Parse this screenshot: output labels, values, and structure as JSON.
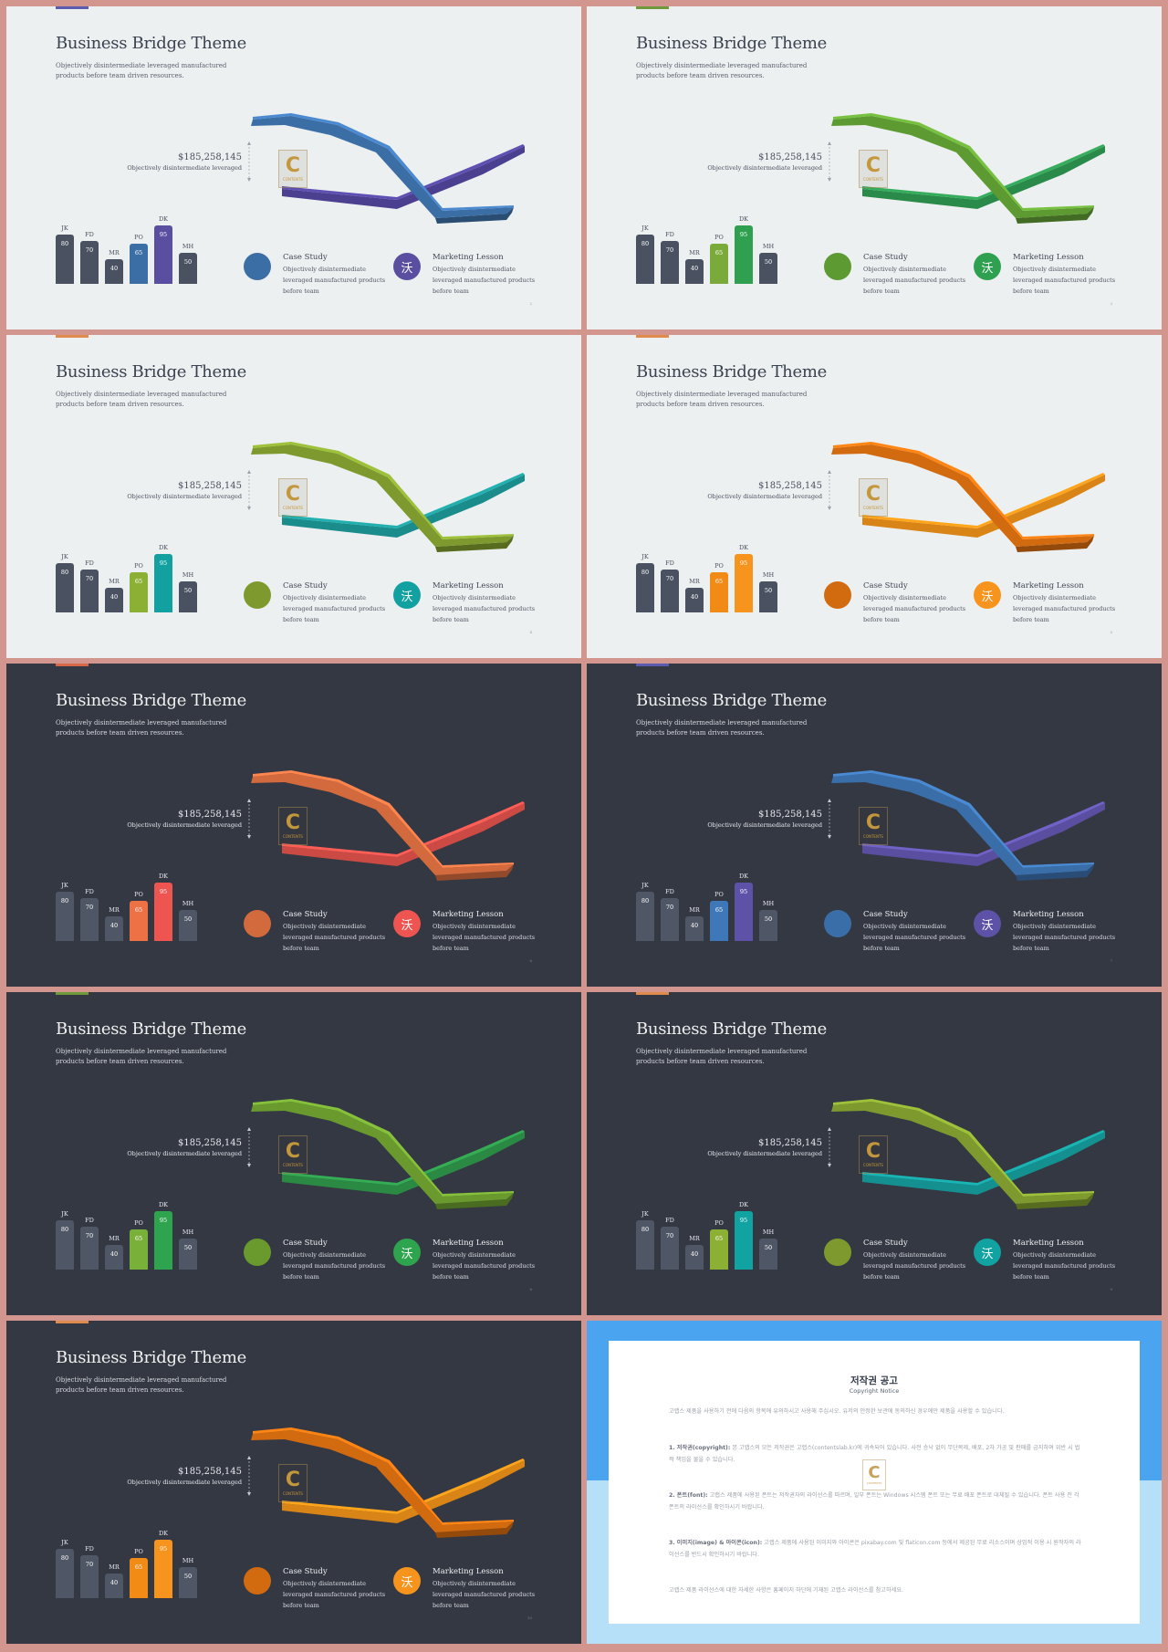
{
  "deck": {
    "common": {
      "title": "Business Bridge Theme",
      "subtitle": "Objectively disintermediate leveraged manufactured products before team driven resources.",
      "amount": "$185,258,145",
      "amount_desc": "Objectively disintermediate leveraged",
      "watermark_letter": "C",
      "watermark_text": "CONTENTS",
      "legend": [
        {
          "title": "Case Study",
          "desc": "Objectively disintermediate leveraged manufactured products before team",
          "icon": "circle"
        },
        {
          "title": "Marketing Lesson",
          "desc": "Objectively disintermediate leveraged manufactured products before team",
          "icon": "沃"
        }
      ],
      "bars": [
        {
          "label": "JK",
          "value": 80
        },
        {
          "label": "FD",
          "value": 70
        },
        {
          "label": "MR",
          "value": 40
        },
        {
          "label": "PO",
          "value": 65
        },
        {
          "label": "DK",
          "value": 95
        },
        {
          "label": "MH",
          "value": 50
        }
      ]
    },
    "slides": [
      {
        "theme": "light",
        "page": "2",
        "tab": "#5b5bb0",
        "c1": "#3c6ea6",
        "c2": "#4b3f8f",
        "bar_po": "#3c6ea6",
        "bar_dk": "#5a4ea0"
      },
      {
        "theme": "light",
        "page": "3",
        "tab": "#6e9a3c",
        "c1": "#5e9a32",
        "c2": "#2a8a4a",
        "bar_po": "#7aab3a",
        "bar_dk": "#2ea050"
      },
      {
        "theme": "light",
        "page": "4",
        "tab": "#e08a4c",
        "c1": "#7e9a2e",
        "c2": "#1a8c8c",
        "bar_po": "#8cb034",
        "bar_dk": "#13a0a0"
      },
      {
        "theme": "light",
        "page": "5",
        "tab": "#e08a4c",
        "c1": "#d26a10",
        "c2": "#d98416",
        "bar_po": "#f28a16",
        "bar_dk": "#f7941d"
      },
      {
        "theme": "dark",
        "page": "6",
        "tab": "#d8674a",
        "c1": "#d26a3e",
        "c2": "#cc4a44",
        "bar_po": "#ee7045",
        "bar_dk": "#ee5550"
      },
      {
        "theme": "dark",
        "page": "7",
        "tab": "#5b5bb0",
        "c1": "#3a6ea8",
        "c2": "#5a4ea0",
        "bar_po": "#3e78b8",
        "bar_dk": "#5e52a8"
      },
      {
        "theme": "dark",
        "page": "8",
        "tab": "#6e9a3c",
        "c1": "#6a9a2e",
        "c2": "#2a8a44",
        "bar_po": "#79b03a",
        "bar_dk": "#2ea44e"
      },
      {
        "theme": "dark",
        "page": "9",
        "tab": "#e08a4c",
        "c1": "#7e9a2e",
        "c2": "#149090",
        "bar_po": "#8cb034",
        "bar_dk": "#11a2a2"
      },
      {
        "theme": "dark",
        "page": "10",
        "tab": "#e08a4c",
        "c1": "#d26a10",
        "c2": "#d98416",
        "bar_po": "#f28a16",
        "bar_dk": "#f7941d"
      }
    ],
    "copyright": {
      "title": "저작권 공고",
      "subtitle": "Copyright Notice",
      "paragraphs": [
        {
          "lead": "",
          "text": "고랩스 제품을 사용하기 전에 다음의 항목에 유의하시고 사용해 주십시오. 유저의 안정한 보관에 동의하신 경우에만 제품을 사용할 수 있습니다."
        },
        {
          "lead": "1. 저작권(copyright):",
          "text": "본 고랩스의 모든 저작권은 고랩스(contentslab.kr)에 귀속되어 있습니다. 사전 승낙 없이 무단복제, 배포, 2차 가공 및 판매를 금지하며 위반 시 법적 책임을 물을 수 있습니다."
        },
        {
          "lead": "2. 폰트(font):",
          "text": "고랩스 제품에 사용된 폰트는 저작권자의 라이선스를 따르며, 일부 폰트는 Windows 시스템 폰트 또는 무료 배포 폰트로 대체될 수 있습니다. 폰트 사용 전 각 폰트의 라이선스를 확인하시기 바랍니다."
        },
        {
          "lead": "3. 이미지(image) & 아이콘(icon):",
          "text": "고랩스 제품에 사용된 이미지와 아이콘은 pixabay.com 및 flaticon.com 등에서 제공된 무료 리소스이며 상업적 이용 시 원작자의 라이선스를 반드시 확인하시기 바랍니다."
        },
        {
          "lead": "",
          "text": "고랩스 제품 라이선스에 대한 자세한 사항은 홈페이지 하단에 기재된 고랩스 라이선스를 참고하세요."
        }
      ]
    }
  }
}
